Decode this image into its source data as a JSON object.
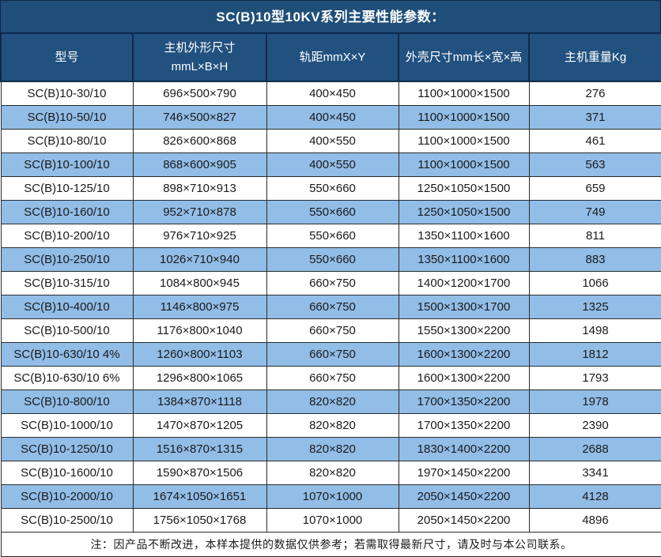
{
  "title": "SC(B)10型10KV系列主要性能参数：",
  "columns": [
    "型号",
    "主机外形尺寸\nmmL×B×H",
    "轨距mmX×Y",
    "外壳尺寸mm长×宽×高",
    "主机重量Kg"
  ],
  "rows": [
    [
      "SC(B)10-30/10",
      "696×500×790",
      "400×450",
      "1100×1000×1500",
      "276"
    ],
    [
      "SC(B)10-50/10",
      "746×500×827",
      "400×450",
      "1100×1000×1500",
      "371"
    ],
    [
      "SC(B)10-80/10",
      "826×600×868",
      "400×550",
      "1100×1000×1500",
      "461"
    ],
    [
      "SC(B)10-100/10",
      "868×600×905",
      "400×550",
      "1100×1000×1500",
      "563"
    ],
    [
      "SC(B)10-125/10",
      "898×710×913",
      "550×660",
      "1250×1050×1500",
      "659"
    ],
    [
      "SC(B)10-160/10",
      "952×710×878",
      "550×660",
      "1250×1050×1500",
      "749"
    ],
    [
      "SC(B)10-200/10",
      "976×710×925",
      "550×660",
      "1350×1100×1600",
      "811"
    ],
    [
      "SC(B)10-250/10",
      "1026×710×940",
      "550×660",
      "1350×1100×1600",
      "883"
    ],
    [
      "SC(B)10-315/10",
      "1084×800×945",
      "660×750",
      "1400×1200×1700",
      "1066"
    ],
    [
      "SC(B)10-400/10",
      "1146×800×975",
      "660×750",
      "1500×1300×1700",
      "1325"
    ],
    [
      "SC(B)10-500/10",
      "1176×800×1040",
      "660×750",
      "1550×1300×2200",
      "1498"
    ],
    [
      "SC(B)10-630/10 4%",
      "1260×800×1103",
      "660×750",
      "1600×1300×2200",
      "1812"
    ],
    [
      "SC(B)10-630/10 6%",
      "1296×800×1065",
      "660×750",
      "1600×1300×2200",
      "1793"
    ],
    [
      "SC(B)10-800/10",
      "1384×870×1118",
      "820×820",
      "1700×1350×2200",
      "1978"
    ],
    [
      "SC(B)10-1000/10",
      "1470×870×1205",
      "820×820",
      "1700×1350×2200",
      "2390"
    ],
    [
      "SC(B)10-1250/10",
      "1516×870×1315",
      "820×820",
      "1830×1400×2200",
      "2688"
    ],
    [
      "SC(B)10-1600/10",
      "1590×870×1506",
      "820×820",
      "1970×1450×2200",
      "3341"
    ],
    [
      "SC(B)10-2000/10",
      "1674×1050×1651",
      "1070×1000",
      "2050×1450×2200",
      "4128"
    ],
    [
      "SC(B)10-2500/10",
      "1756×1050×1768",
      "1070×1000",
      "2050×1450×2200",
      "4896"
    ]
  ],
  "footer_note": "注：因产品不断改进，本样本提供的数据仅供参考；若需取得最新尺寸，请及时与本公司联系。",
  "colors": {
    "title_bg": "#1F4E79",
    "header_bg": "#21517F",
    "row_alt_bg": "#92BDE7",
    "row_bg": "#FFFFFF",
    "header_text": "#FFFFFF",
    "body_text": "#1A1A1A",
    "header_border": "#10294A",
    "cell_border": "#2B2B2B"
  }
}
